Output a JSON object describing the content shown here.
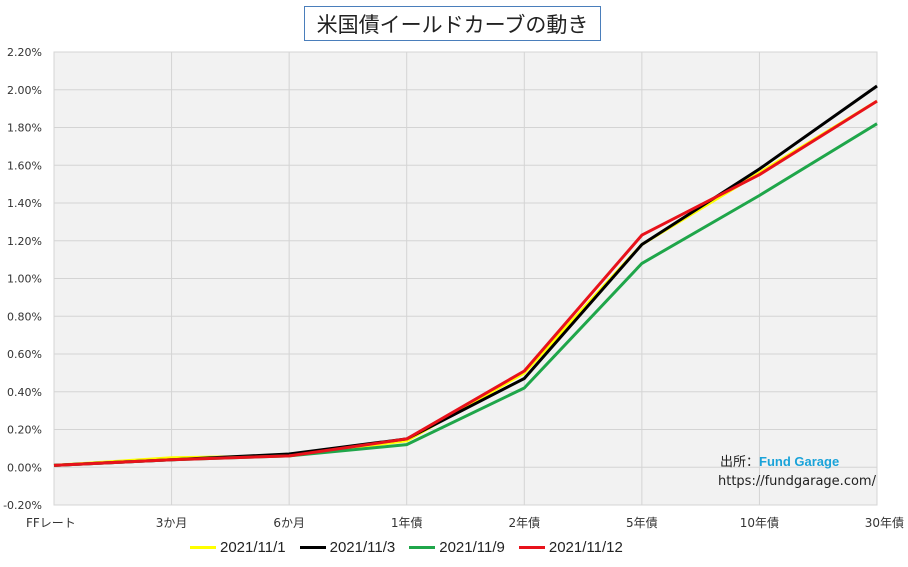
{
  "chart_data": {
    "type": "line",
    "title": "米国債イールドカーブの動き",
    "categories": [
      "FFレート",
      "3か月",
      "6か月",
      "1年債",
      "2年債",
      "5年債",
      "10年債",
      "30年債"
    ],
    "yticks": [
      "-0.20%",
      "0.00%",
      "0.20%",
      "0.40%",
      "0.60%",
      "0.80%",
      "1.00%",
      "1.20%",
      "1.40%",
      "1.60%",
      "1.80%",
      "2.00%",
      "2.20%"
    ],
    "ylim": [
      -0.2,
      2.2
    ],
    "grid": true,
    "legend_position": "bottom",
    "series": [
      {
        "name": "2021/11/1",
        "color": "#ffff00",
        "values": [
          0.01,
          0.05,
          0.06,
          0.14,
          0.5,
          1.18,
          1.56,
          1.94
        ]
      },
      {
        "name": "2021/11/3",
        "color": "#000000",
        "values": [
          0.01,
          0.04,
          0.07,
          0.15,
          0.47,
          1.18,
          1.58,
          2.02
        ]
      },
      {
        "name": "2021/11/9",
        "color": "#1fa64a",
        "values": [
          0.01,
          0.04,
          0.06,
          0.12,
          0.42,
          1.08,
          1.44,
          1.82
        ]
      },
      {
        "name": "2021/11/12",
        "color": "#e8121b",
        "values": [
          0.01,
          0.04,
          0.06,
          0.15,
          0.51,
          1.23,
          1.55,
          1.94
        ]
      }
    ]
  },
  "source": {
    "label": "出所：",
    "brand": "Fund Garage",
    "url": "https://fundgarage.com/"
  }
}
